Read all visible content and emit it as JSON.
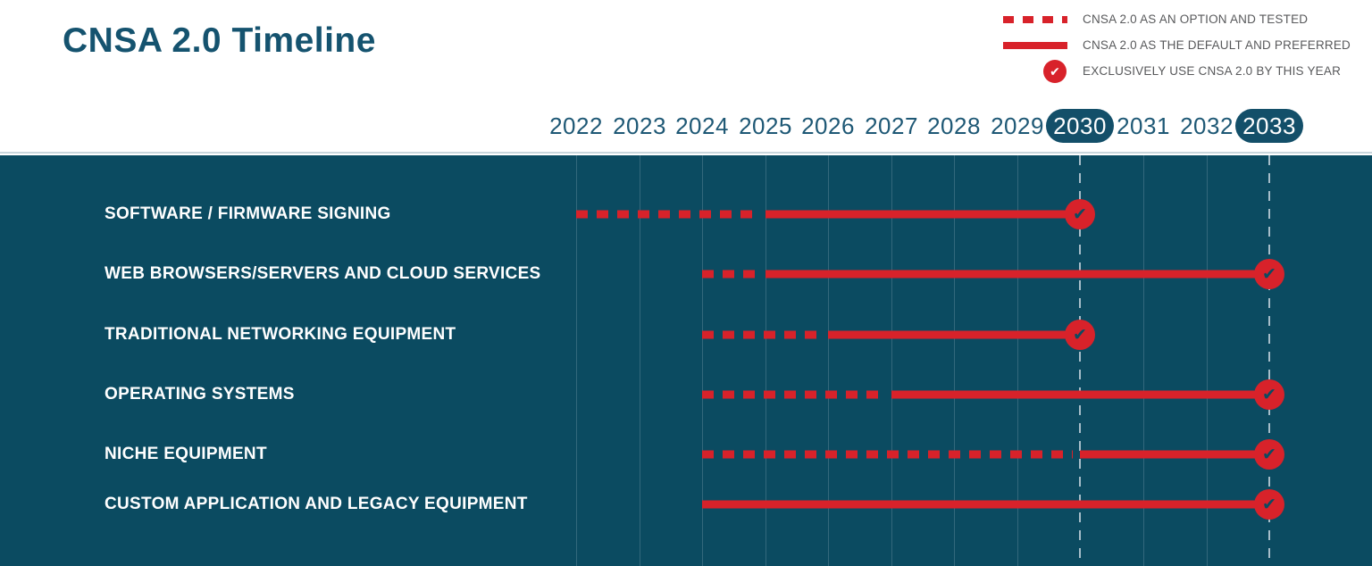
{
  "title": "CNSA 2.0 Timeline",
  "legend": {
    "items": [
      {
        "swatch": "dashed-line",
        "label": "CNSA 2.0 AS AN OPTION AND TESTED"
      },
      {
        "swatch": "solid-line",
        "label": "CNSA 2.0 AS THE DEFAULT AND PREFERRED"
      },
      {
        "swatch": "check-circle",
        "label": "EXCLUSIVELY USE CNSA 2.0 BY THIS YEAR"
      }
    ]
  },
  "colors": {
    "accent_red": "#d8222a",
    "chart_background": "#0b4b61",
    "title_teal": "#15536f",
    "year_text": "#1e5875",
    "year_pill": "#134f69",
    "gridline": "#33687c",
    "milestone_gridline": "#a7bdc9",
    "legend_text": "#58595b",
    "row_label_text": "#ffffff"
  },
  "chart_data": {
    "type": "timeline",
    "title": "CNSA 2.0 Timeline",
    "x": [
      2022,
      2023,
      2024,
      2025,
      2026,
      2027,
      2028,
      2029,
      2030,
      2031,
      2032,
      2033
    ],
    "highlight_years": [
      2030,
      2033
    ],
    "legend": [
      "CNSA 2.0 AS AN OPTION AND TESTED",
      "CNSA 2.0 AS THE DEFAULT AND PREFERRED",
      "EXCLUSIVELY USE CNSA 2.0 BY THIS YEAR"
    ],
    "legend_position": "top-right",
    "grid": true,
    "rows": [
      {
        "label": "SOFTWARE / FIRMWARE SIGNING",
        "option_start": 2022,
        "default_start": 2025,
        "exclusive_year": 2030
      },
      {
        "label": "WEB BROWSERS/SERVERS AND CLOUD SERVICES",
        "option_start": 2024,
        "default_start": 2025,
        "exclusive_year": 2033
      },
      {
        "label": "TRADITIONAL NETWORKING EQUIPMENT",
        "option_start": 2024,
        "default_start": 2026,
        "exclusive_year": 2030
      },
      {
        "label": "OPERATING SYSTEMS",
        "option_start": 2024,
        "default_start": 2027,
        "exclusive_year": 2033
      },
      {
        "label": "NICHE EQUIPMENT",
        "option_start": 2024,
        "default_start": 2030,
        "exclusive_year": 2033
      },
      {
        "label": "CUSTOM APPLICATION AND LEGACY EQUIPMENT",
        "option_start": null,
        "default_start": 2024,
        "exclusive_year": 2033
      }
    ],
    "check_glyph": "✔"
  }
}
